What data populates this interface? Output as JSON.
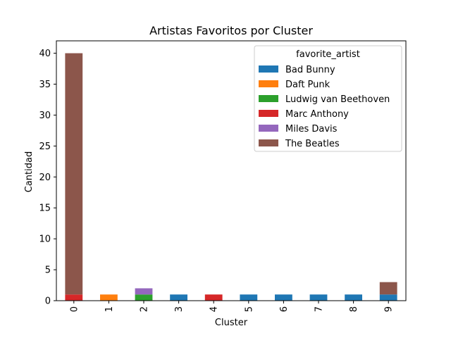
{
  "chart_data": {
    "type": "bar",
    "stacked": true,
    "title": "Artistas Favoritos por Cluster",
    "xlabel": "Cluster",
    "ylabel": "Cantidad",
    "categories": [
      "0",
      "1",
      "2",
      "3",
      "4",
      "5",
      "6",
      "7",
      "8",
      "9"
    ],
    "ylim": [
      0,
      42
    ],
    "yticks": [
      0,
      5,
      10,
      15,
      20,
      25,
      30,
      35,
      40
    ],
    "legend_title": "favorite_artist",
    "legend_position": "top-right",
    "grid": false,
    "series": [
      {
        "name": "Bad Bunny",
        "color": "#1f77b4",
        "values": [
          0,
          0,
          0,
          1,
          0,
          1,
          1,
          1,
          1,
          1
        ]
      },
      {
        "name": "Daft Punk",
        "color": "#ff7f0e",
        "values": [
          0,
          1,
          0,
          0,
          0,
          0,
          0,
          0,
          0,
          0
        ]
      },
      {
        "name": "Ludwig van Beethoven",
        "color": "#2ca02c",
        "values": [
          0,
          0,
          1,
          0,
          0,
          0,
          0,
          0,
          0,
          0
        ]
      },
      {
        "name": "Marc Anthony",
        "color": "#d62728",
        "values": [
          1,
          0,
          0,
          0,
          1,
          0,
          0,
          0,
          0,
          0
        ]
      },
      {
        "name": "Miles Davis",
        "color": "#9467bd",
        "values": [
          0,
          0,
          1,
          0,
          0,
          0,
          0,
          0,
          0,
          0
        ]
      },
      {
        "name": "The Beatles",
        "color": "#8c564b",
        "values": [
          39,
          0,
          0,
          0,
          0,
          0,
          0,
          0,
          0,
          2
        ]
      }
    ]
  }
}
